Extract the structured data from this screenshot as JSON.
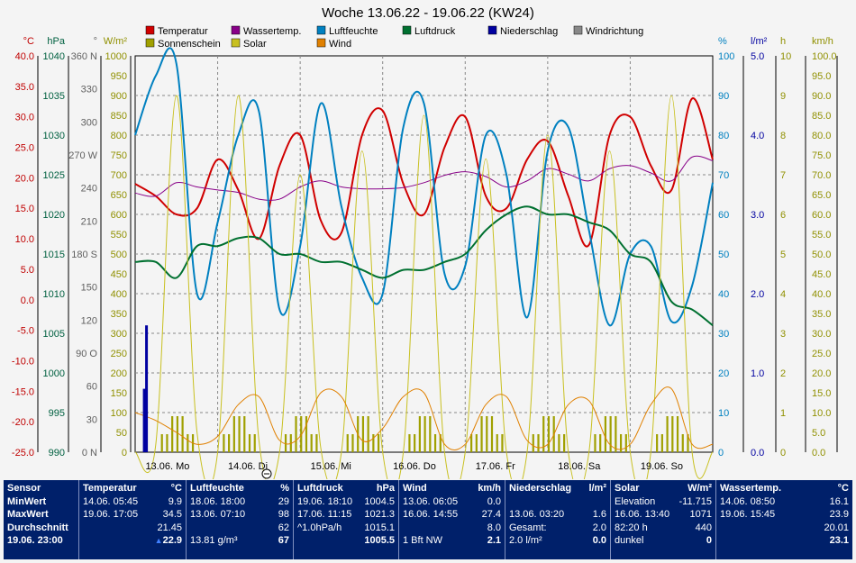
{
  "title": "Woche 13.06.22 - 19.06.22 (KW24)",
  "legend": [
    {
      "label": "Temperatur",
      "color": "#d00000"
    },
    {
      "label": "Wassertemp.",
      "color": "#880088"
    },
    {
      "label": "Luftfeuchte",
      "color": "#0080c0"
    },
    {
      "label": "Luftdruck",
      "color": "#007030"
    },
    {
      "label": "Niederschlag",
      "color": "#0000a0"
    },
    {
      "label": "Windrichtung",
      "color": "#888888"
    },
    {
      "label": "Sonnenschein",
      "color": "#a0a000"
    },
    {
      "label": "Solar",
      "color": "#c8c020"
    },
    {
      "label": "Wind",
      "color": "#e08000"
    }
  ],
  "axes_left": [
    {
      "unit": "°C",
      "color": "#c00000",
      "ticks": [
        "40.0",
        "35.0",
        "30.0",
        "25.0",
        "20.0",
        "15.0",
        "10.0",
        "5.0",
        "0.0",
        "-5.0",
        "-10.0",
        "-15.0",
        "-20.0",
        "-25.0"
      ]
    },
    {
      "unit": "hPa",
      "color": "#006040",
      "ticks": [
        "1040",
        "1035",
        "1030",
        "1025",
        "1020",
        "1015",
        "1010",
        "1005",
        "1000",
        "995",
        "990"
      ]
    },
    {
      "unit": "°",
      "color": "#606060",
      "ticks": [
        "360 N",
        "330",
        "300",
        "270 W",
        "240",
        "210",
        "180 S",
        "150",
        "120",
        "90 O",
        "60",
        "30",
        "0 N"
      ]
    },
    {
      "unit": "W/m²",
      "color": "#909000",
      "ticks": [
        "1000",
        "950",
        "900",
        "850",
        "800",
        "750",
        "700",
        "650",
        "600",
        "550",
        "500",
        "450",
        "400",
        "350",
        "300",
        "250",
        "200",
        "150",
        "100",
        "50",
        "0"
      ]
    }
  ],
  "axes_right": [
    {
      "unit": "%",
      "color": "#0080c0",
      "ticks": [
        "100",
        "90",
        "80",
        "70",
        "60",
        "50",
        "40",
        "30",
        "20",
        "10",
        "0"
      ]
    },
    {
      "unit": "l/m²",
      "color": "#0000a0",
      "ticks": [
        "5.0",
        "4.0",
        "3.0",
        "2.0",
        "1.0",
        "0.0"
      ]
    },
    {
      "unit": "h",
      "color": "#909000",
      "ticks": [
        "10",
        "9",
        "8",
        "7",
        "6",
        "5",
        "4",
        "3",
        "2",
        "1",
        "0"
      ]
    },
    {
      "unit": "km/h",
      "color": "#909000",
      "ticks": [
        "100.0",
        "95.0",
        "90.0",
        "85.0",
        "80.0",
        "75.0",
        "70.0",
        "65.0",
        "60.0",
        "55.0",
        "50.0",
        "45.0",
        "40.0",
        "35.0",
        "30.0",
        "25.0",
        "20.0",
        "15.0",
        "10.0",
        "5.0",
        "0.0"
      ]
    }
  ],
  "chart_data": {
    "type": "line",
    "title": "Woche 13.06.22 - 19.06.22 (KW24)",
    "x_categories": [
      "13.06. Mo",
      "14.06. Di",
      "15.06. Mi",
      "16.06. Do",
      "17.06. Fr",
      "18.06. Sa",
      "19.06. So"
    ],
    "x_hours": [
      0,
      6,
      12,
      18,
      24,
      30,
      36,
      42,
      48,
      54,
      60,
      66,
      72,
      78,
      84,
      90,
      96,
      102,
      108,
      114,
      120,
      126,
      132,
      138,
      144,
      150,
      156,
      162,
      168
    ],
    "ranges": {
      "temperature": [
        -25,
        40
      ],
      "pressure": [
        990,
        1040
      ],
      "humidity": [
        0,
        100
      ],
      "solar": [
        0,
        1000
      ],
      "wind": [
        0,
        100
      ],
      "rain": [
        0,
        5
      ]
    },
    "series": [
      {
        "name": "Temperatur",
        "color": "#d00000",
        "values": [
          19,
          17,
          14,
          15,
          23,
          18,
          10,
          22,
          27,
          13,
          11,
          27,
          31,
          19,
          14,
          25,
          30,
          17,
          15,
          23,
          26,
          17,
          9,
          27,
          30,
          22,
          18,
          33,
          23
        ]
      },
      {
        "name": "Wassertemp.",
        "color": "#880088",
        "values": [
          17.5,
          17,
          19.2,
          18.5,
          18,
          17.6,
          16.5,
          16.5,
          18.5,
          19.5,
          18.5,
          18.2,
          18.2,
          18.4,
          19.2,
          20.4,
          21,
          20.2,
          18.5,
          19.5,
          21.5,
          20.6,
          19.5,
          21.5,
          22,
          20.8,
          19.5,
          23.4,
          22.8
        ]
      },
      {
        "name": "Luftfeuchte",
        "color": "#0080c0",
        "values": [
          80,
          95,
          98,
          40,
          58,
          80,
          86,
          36,
          52,
          88,
          62,
          44,
          40,
          82,
          88,
          45,
          47,
          80,
          70,
          34,
          76,
          82,
          56,
          32,
          50,
          52,
          33,
          42,
          68
        ]
      },
      {
        "name": "Luftdruck",
        "color": "#007030",
        "values": [
          1014,
          1014,
          1012,
          1016,
          1016,
          1017,
          1017,
          1015,
          1015,
          1014,
          1014,
          1013,
          1012,
          1013,
          1013,
          1014,
          1015,
          1018,
          1020,
          1021,
          1020,
          1020,
          1019,
          1018,
          1015,
          1014,
          1009,
          1008,
          1006
        ]
      },
      {
        "name": "Solar",
        "color": "#c8c020",
        "values": [
          0,
          20,
          900,
          50,
          0,
          900,
          30,
          0,
          700,
          10,
          0,
          760,
          0,
          0,
          850,
          0,
          0,
          740,
          0,
          0,
          800,
          0,
          0,
          760,
          0,
          0,
          900,
          0,
          0
        ]
      },
      {
        "name": "Wind",
        "color": "#e08000",
        "values": [
          10,
          8,
          5,
          2,
          4,
          12,
          14,
          3,
          4,
          15,
          14,
          3,
          6,
          14,
          15,
          2,
          2,
          12,
          14,
          3,
          2,
          12,
          13,
          2,
          2,
          12,
          16,
          2,
          2
        ]
      }
    ],
    "niederschlag_peak": {
      "x_hours": 3.3,
      "value": 1.6
    }
  },
  "panel": {
    "sensor": {
      "hdr": "Sensor",
      "min": "MinWert",
      "max": "MaxWert",
      "avg": "Durchschnitt",
      "now": "19.06. 23:00"
    },
    "temp": {
      "hdr": "Temperatur",
      "unit": "°C",
      "min_t": "14.06. 05:45",
      "min_v": "9.9",
      "max_t": "19.06. 17:05",
      "max_v": "34.5",
      "avg": "21.45",
      "now": "22.9"
    },
    "hum": {
      "hdr": "Luftfeuchte",
      "unit": "%",
      "min_t": "18.06. 18:00",
      "min_v": "29",
      "max_t": "13.06. 07:10",
      "max_v": "98",
      "avg": "62",
      "abs": "13.81 g/m³",
      "now": "67"
    },
    "pres": {
      "hdr": "Luftdruck",
      "unit": "hPa",
      "min_t": "19.06. 18:10",
      "min_v": "1004.5",
      "max_t": "17.06. 11:15",
      "max_v": "1021.3",
      "trend_l": "^1.0hPa/h",
      "trend_v": "1015.1",
      "now": "1005.5"
    },
    "wind": {
      "hdr": "Wind",
      "unit": "km/h",
      "min_t": "13.06. 06:05",
      "min_v": "0.0",
      "max_t": "16.06. 14:55",
      "max_v": "27.4",
      "avg": "8.0",
      "dir": "1 Bft NW",
      "now": "2.1"
    },
    "rain": {
      "hdr": "Niederschlag",
      "unit": "l/m²",
      "max_t": "13.06. 03:20",
      "max_v": "1.6",
      "ges_l": "Gesamt:",
      "ges_v": "2.0",
      "now_l": "2.0 l/m²",
      "now": "0.0"
    },
    "solar": {
      "hdr": "Solar",
      "unit": "W/m²",
      "elev_l": "Elevation",
      "elev_v": "-11.715",
      "max_t": "16.06. 13:40",
      "max_v": "1071",
      "dur_l": "82:20 h",
      "dur_v": "440",
      "state": "dunkel",
      "now": "0"
    },
    "water": {
      "hdr": "Wassertemp.",
      "unit": "°C",
      "min_t": "14.06. 08:50",
      "min_v": "16.1",
      "max_t": "19.06. 15:45",
      "max_v": "23.9",
      "avg": "20.01",
      "now": "23.1"
    }
  }
}
